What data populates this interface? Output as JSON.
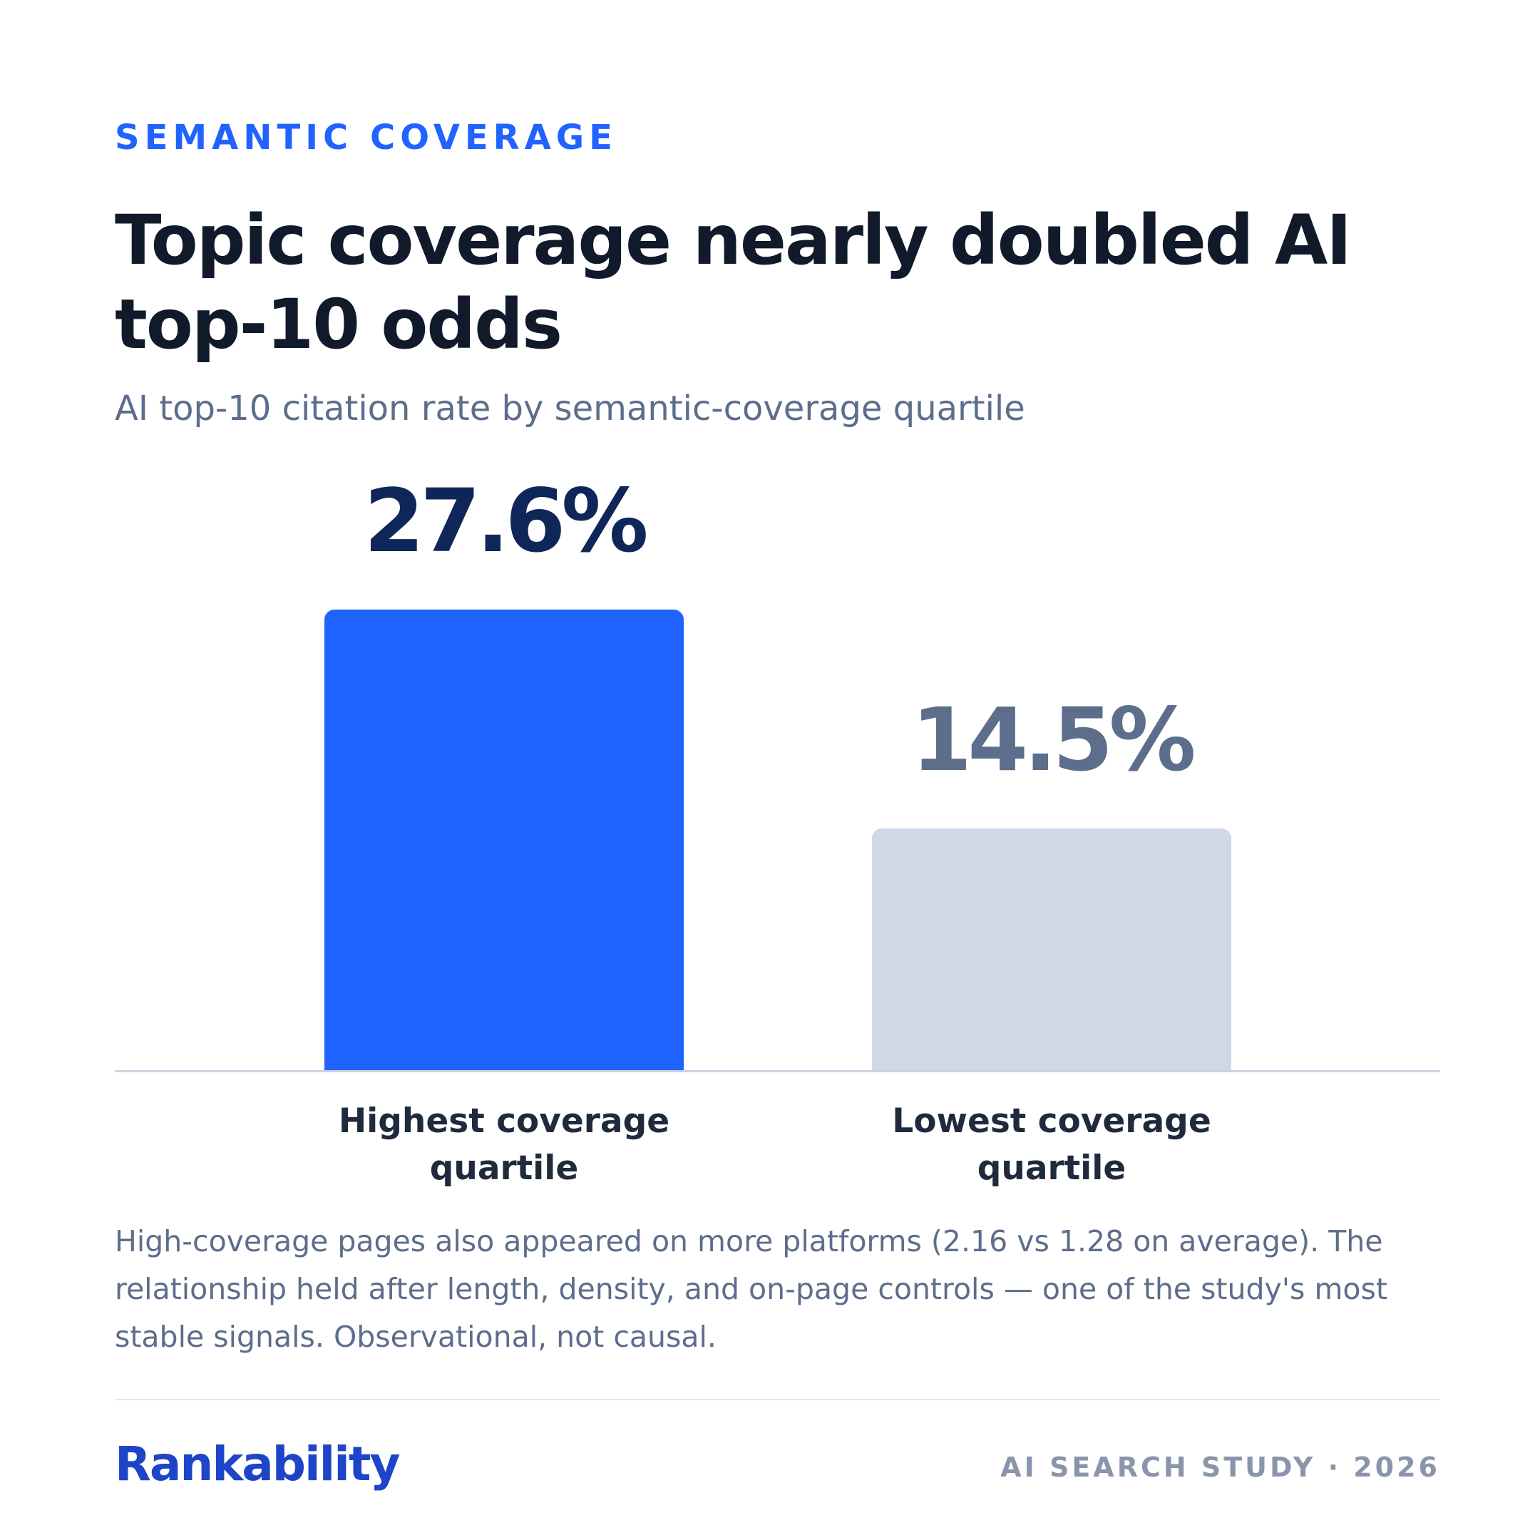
{
  "kicker": "SEMANTIC COVERAGE",
  "chart_data": {
    "type": "bar",
    "title": "Topic coverage nearly doubled AI top-10 odds",
    "subtitle": "AI top-10 citation rate by semantic-coverage quartile",
    "categories": [
      "Highest coverage quartile",
      "Lowest coverage quartile"
    ],
    "values": [
      27.6,
      14.5
    ],
    "value_labels": [
      "27.6%",
      "14.5%"
    ],
    "colors": [
      "#2163ff",
      "#d0d7e7"
    ],
    "value_label_colors": [
      "#0f2758",
      "#5d6d8c"
    ],
    "ylim": [
      0,
      30
    ]
  },
  "note": "High-coverage pages also appeared on more platforms (2.16 vs 1.28 on average). The relationship held after length, density, and on-page controls — one of the study's most stable signals. Observational, not causal.",
  "footer": {
    "brand": "Rankability",
    "tag": "AI SEARCH STUDY · 2026"
  }
}
